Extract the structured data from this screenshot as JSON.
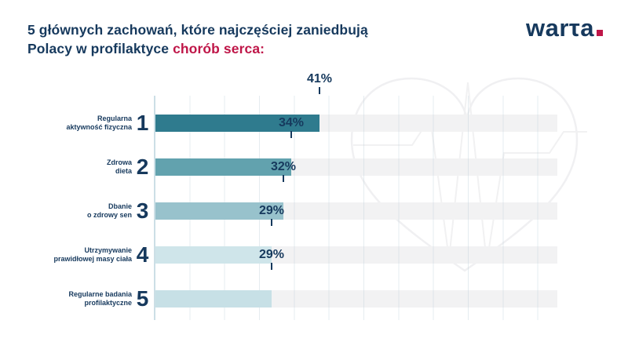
{
  "header": {
    "title_line1": "5 głównych zachowań, które najczęściej zaniedbują",
    "title_line2_prefix": "Polacy w profilaktyce ",
    "title_line2_highlight": "chorób serca:",
    "logo_text": "warτa"
  },
  "colors": {
    "navy": "#16395d",
    "crimson": "#bf1648",
    "track": "#f2f2f3",
    "axis_line": "#ccdfe6",
    "gridline": "#dfe8ed",
    "watermark": "#f1f1f2",
    "bar_colors": [
      "#2f7b8e",
      "#62a2ae",
      "#98c2cc",
      "#cfe5ea",
      "#c7e0e6"
    ]
  },
  "chart_data": {
    "type": "bar",
    "orientation": "horizontal",
    "title": "5 głównych zachowań, które najczęściej zaniedbują Polacy w profilaktyce chorób serca:",
    "unit": "%",
    "xlim": [
      0,
      100
    ],
    "grid": true,
    "legend": false,
    "categories": [
      "Regularna aktywność fizyczna",
      "Zdrowa dieta",
      "Dbanie o zdrowy sen",
      "Utrzymywanie prawidłowej masy ciała",
      "Regularne badania profilaktyczne"
    ],
    "values": [
      41,
      34,
      32,
      29,
      29
    ],
    "ranks": [
      1,
      2,
      3,
      4,
      5
    ],
    "data_labels": [
      "41%",
      "34%",
      "32%",
      "29%",
      "29%"
    ]
  },
  "bars": [
    {
      "rank": "1",
      "label_line1": "Regularna",
      "label_line2": "aktywność fizyczna",
      "value": 41,
      "value_label": "41%",
      "color": "#2f7b8e"
    },
    {
      "rank": "2",
      "label_line1": "Zdrowa",
      "label_line2": "dieta",
      "value": 34,
      "value_label": "34%",
      "color": "#62a2ae"
    },
    {
      "rank": "3",
      "label_line1": "Dbanie",
      "label_line2": "o zdrowy sen",
      "value": 32,
      "value_label": "32%",
      "color": "#98c2cc"
    },
    {
      "rank": "4",
      "label_line1": "Utrzymywanie",
      "label_line2": "prawidłowej masy ciała",
      "value": 29,
      "value_label": "29%",
      "color": "#cfe5ea"
    },
    {
      "rank": "5",
      "label_line1": "Regularne badania",
      "label_line2": "profilaktyczne",
      "value": 29,
      "value_label": "29%",
      "color": "#c7e0e6"
    }
  ]
}
